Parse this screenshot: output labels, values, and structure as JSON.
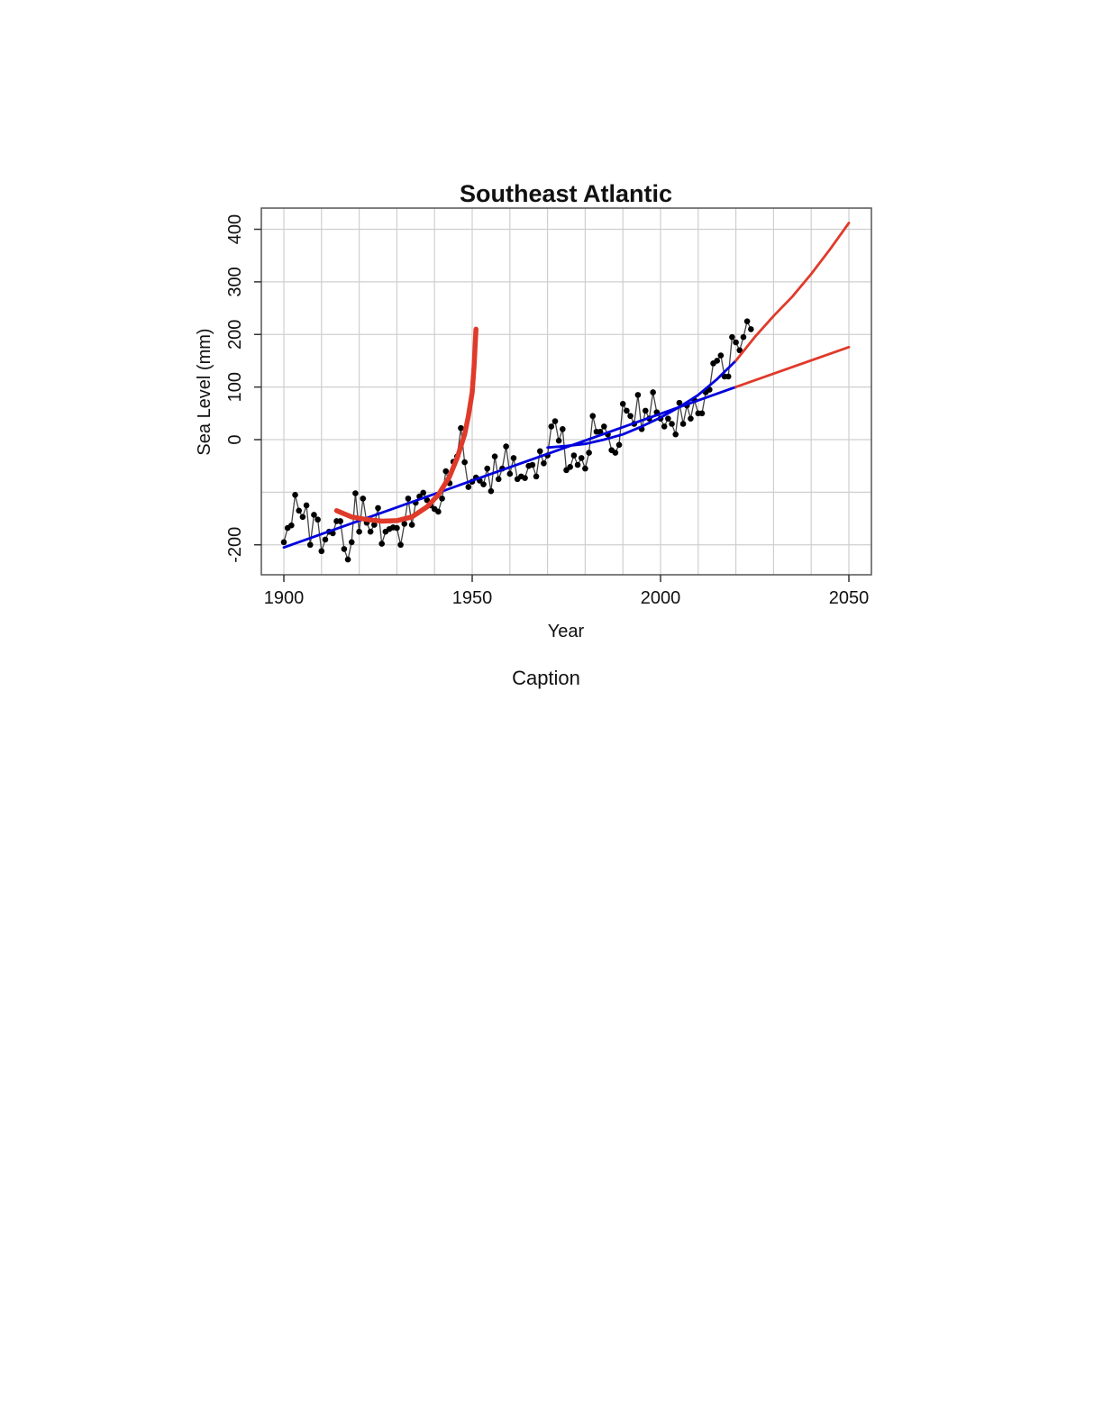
{
  "caption": "Caption",
  "chart_data": {
    "type": "line",
    "title": "Southeast Atlantic",
    "xlabel": "Year",
    "ylabel": "Sea Level (mm)",
    "xlim": [
      1900,
      2050
    ],
    "ylim": [
      -200,
      400
    ],
    "xticks": [
      1900,
      1950,
      2000,
      2050
    ],
    "yticks": [
      -200,
      0,
      100,
      200,
      300,
      400
    ],
    "ytick_labels": [
      "-200",
      "0",
      "100",
      "200",
      "300",
      "400"
    ],
    "grid": true,
    "colors": {
      "observed": "#000000",
      "trend": "#0000dd",
      "projection": "#e03a2a"
    },
    "series": [
      {
        "type": "line+points",
        "x": [
          1900,
          1901,
          1902,
          1903,
          1904,
          1905,
          1906,
          1907,
          1908,
          1909,
          1910,
          1911,
          1912,
          1913,
          1914,
          1915,
          1916,
          1917,
          1918,
          1919,
          1920,
          1921,
          1922,
          1923,
          1924,
          1925,
          1926,
          1927,
          1928,
          1929,
          1930,
          1931,
          1932,
          1933,
          1934,
          1935,
          1936,
          1937,
          1938,
          1939,
          1940,
          1941,
          1942,
          1943,
          1944,
          1945,
          1946,
          1947,
          1948,
          1949,
          1950,
          1951,
          1952,
          1953,
          1954,
          1955,
          1956,
          1957,
          1958,
          1959,
          1960,
          1961,
          1962,
          1963,
          1964,
          1965,
          1966,
          1967,
          1968,
          1969,
          1970,
          1971,
          1972,
          1973,
          1974,
          1975,
          1976,
          1977,
          1978,
          1979,
          1980,
          1981,
          1982,
          1983,
          1984,
          1985,
          1986,
          1987,
          1988,
          1989,
          1990,
          1991,
          1992,
          1993,
          1994,
          1995,
          1996,
          1997,
          1998,
          1999,
          2000,
          2001,
          2002,
          2003,
          2004,
          2005,
          2006,
          2007,
          2008,
          2009,
          2010,
          2011,
          2012,
          2013,
          2014,
          2015,
          2016,
          2017,
          2018,
          2019,
          2020,
          2021,
          2022,
          2023,
          2024
        ],
        "y": [
          -195,
          -168,
          -163,
          -105,
          -135,
          -147,
          -125,
          -200,
          -143,
          -152,
          -212,
          -190,
          -175,
          -178,
          -155,
          -155,
          -208,
          -228,
          -195,
          -102,
          -175,
          -112,
          -158,
          -175,
          -162,
          -130,
          -198,
          -175,
          -170,
          -167,
          -168,
          -200,
          -160,
          -112,
          -162,
          -120,
          -108,
          -101,
          -115,
          -125,
          -132,
          -137,
          -112,
          -60,
          -83,
          -42,
          -32,
          22,
          -43,
          -90,
          -80,
          -72,
          -78,
          -85,
          -55,
          -98,
          -32,
          -75,
          -55,
          -13,
          -65,
          -35,
          -75,
          -70,
          -73,
          -50,
          -48,
          -70,
          -22,
          -45,
          -30,
          25,
          35,
          -2,
          20,
          -58,
          -52,
          -30,
          -48,
          -35,
          -55,
          -25,
          45,
          15,
          15,
          25,
          10,
          -20,
          -25,
          -10,
          68,
          55,
          45,
          30,
          85,
          20,
          55,
          40,
          90,
          52,
          40,
          25,
          40,
          30,
          10,
          70,
          30,
          65,
          40,
          75,
          50,
          50,
          90,
          95,
          145,
          150,
          160,
          120,
          120,
          195,
          185,
          170,
          195,
          225,
          210
        ]
      },
      {
        "type": "line",
        "x": [
          1900,
          2020
        ],
        "y": [
          -205,
          100
        ]
      },
      {
        "type": "line",
        "x": [
          1970,
          1975,
          1980,
          1985,
          1990,
          1995,
          2000,
          2005,
          2010,
          2015,
          2020
        ],
        "y": [
          -15,
          -12,
          -8,
          0,
          10,
          25,
          42,
          62,
          85,
          115,
          150
        ]
      },
      {
        "type": "line",
        "x": [
          2020,
          2025,
          2030,
          2035,
          2040,
          2045,
          2050
        ],
        "y": [
          150,
          195,
          235,
          272,
          315,
          362,
          412
        ]
      },
      {
        "type": "line",
        "x": [
          2020,
          2050
        ],
        "y": [
          100,
          176
        ]
      },
      {
        "type": "line",
        "x": [
          1914,
          1918,
          1922,
          1926,
          1930,
          1934,
          1938,
          1941,
          1944,
          1946,
          1948,
          1949,
          1950,
          1950.5,
          1951
        ],
        "y": [
          -135,
          -147,
          -152,
          -155,
          -154,
          -147,
          -128,
          -105,
          -70,
          -35,
          10,
          45,
          90,
          140,
          210
        ]
      }
    ]
  }
}
